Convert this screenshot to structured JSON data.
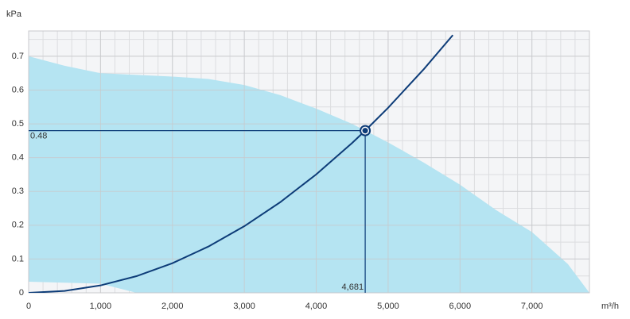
{
  "chart_data": {
    "type": "fan-curve",
    "y_axis_label": "kPa",
    "x_axis_label": "m³/h",
    "xlim": [
      0,
      7800
    ],
    "ylim": [
      0,
      0.775
    ],
    "xticks": [
      0,
      {
        "value": 1000,
        "label": "1,000"
      },
      {
        "value": 2000,
        "label": "2,000"
      },
      {
        "value": 3000,
        "label": "3,000"
      },
      {
        "value": 4000,
        "label": "4,000"
      },
      {
        "value": 5000,
        "label": "5,000"
      },
      {
        "value": 6000,
        "label": "6,000"
      },
      {
        "value": 7000,
        "label": "7,000"
      }
    ],
    "yticks": [
      0,
      0.1,
      0.2,
      0.3,
      0.4,
      0.5,
      0.6,
      0.7
    ],
    "grid": true,
    "area": {
      "color": "#b5e4f2",
      "x": [
        0,
        500,
        1000,
        1500,
        2000,
        2500,
        3000,
        3500,
        4000,
        4500,
        5000,
        5500,
        6000,
        6500,
        7000,
        7500,
        7800
      ],
      "upper": [
        0.7,
        0.672,
        0.65,
        0.645,
        0.64,
        0.633,
        0.615,
        0.585,
        0.545,
        0.5,
        0.445,
        0.385,
        0.32,
        0.245,
        0.18,
        0.085,
        0
      ],
      "lower": [
        0.033,
        0.03,
        0.027,
        0,
        0,
        0,
        0,
        0,
        0,
        0,
        0,
        0,
        0,
        0,
        0,
        0,
        0
      ]
    },
    "system_curve": {
      "color": "#0d3c78",
      "x": [
        0,
        500,
        1000,
        1500,
        2000,
        2500,
        3000,
        3500,
        4000,
        4500,
        4681,
        5000,
        5500,
        5900
      ],
      "values": [
        0,
        0.0055,
        0.0219,
        0.0493,
        0.0876,
        0.1369,
        0.1972,
        0.2683,
        0.3505,
        0.4436,
        0.48,
        0.5477,
        0.6627,
        0.7626
      ]
    },
    "operating_point": {
      "x": 4681,
      "y": 0.48,
      "x_label": "4,681",
      "y_label": "0.48"
    }
  }
}
